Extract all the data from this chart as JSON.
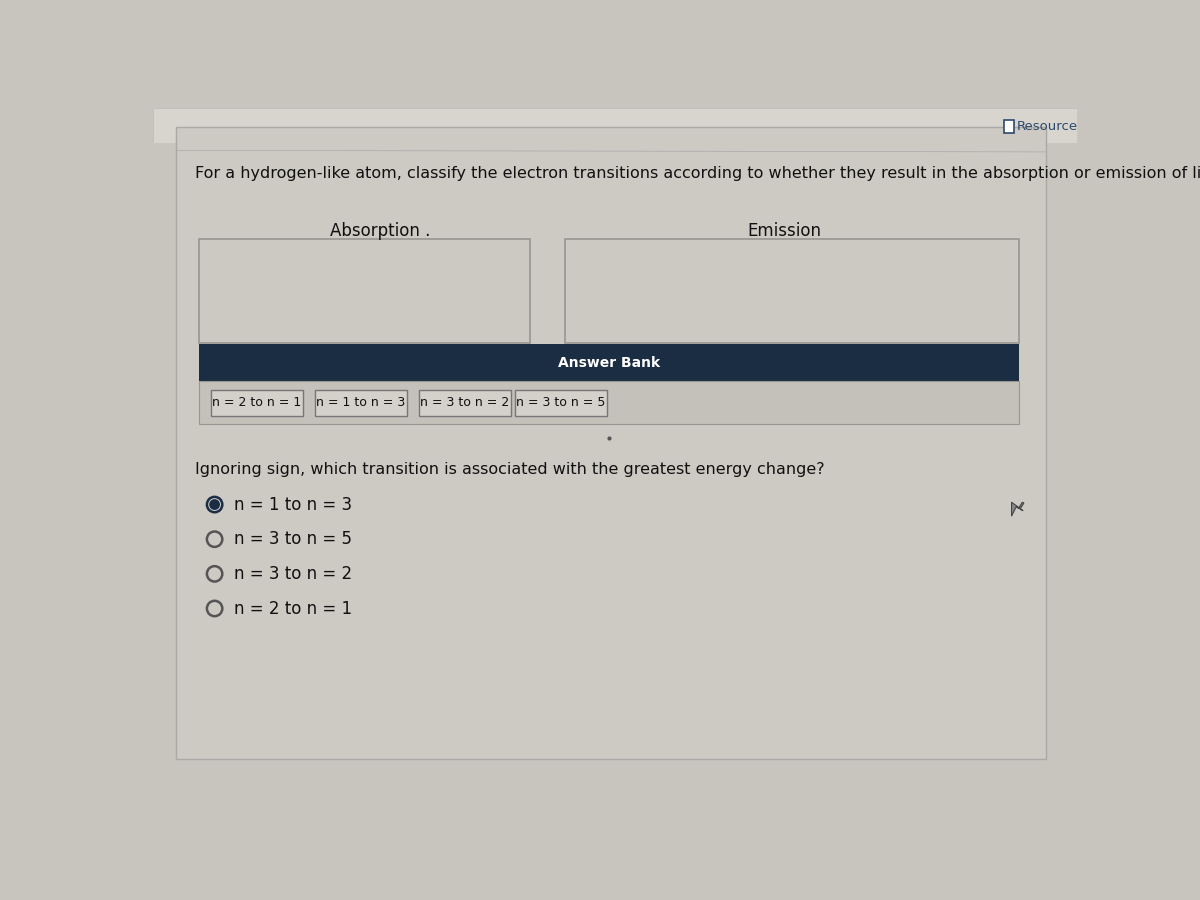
{
  "page_bg": "#c8c4be",
  "content_bg": "#cdc9c3",
  "title_text": "For a hydrogen-like atom, classify the electron transitions according to whether they result in the absorption or emission of light.",
  "resource_text": "Resource",
  "absorption_label": "Absorption .",
  "emission_label": "Emission",
  "answer_bank_label": "Answer Bank",
  "answer_bank_bg": "#1b2d42",
  "answer_bank_row_bg": "#c8c4be",
  "answer_items": [
    "n = 2 to n = 1",
    "n = 1 to n = 3",
    "n = 3 to n = 2",
    "n = 3 to n = 5"
  ],
  "question2_text": "Ignoring sign, which transition is associated with the greatest energy change?",
  "radio_options": [
    "n = 1 to n = 3",
    "n = 3 to n = 5",
    "n = 3 to n = 2",
    "n = 2 to n = 1"
  ],
  "selected_radio": 0,
  "radio_selected_color": "#1a2d44",
  "radio_outer_color": "#555555",
  "box_bg": "#ccc8c2",
  "box_edge": "#999590",
  "item_box_bg": "#d4d0ca",
  "item_box_edge": "#777777",
  "font_color": "#111111",
  "title_font_size": 11.5,
  "label_font_size": 12,
  "answer_bank_font_size": 10,
  "item_font_size": 9,
  "q2_font_size": 11.5,
  "radio_font_size": 12
}
